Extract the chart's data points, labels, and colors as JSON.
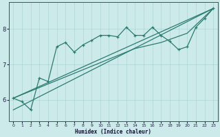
{
  "xlabel": "Humidex (Indice chaleur)",
  "xlim": [
    -0.5,
    23.5
  ],
  "ylim": [
    5.4,
    8.75
  ],
  "background_color": "#cdeaea",
  "grid_color": "#aed4d4",
  "line_color": "#2a7a70",
  "x_ticks": [
    0,
    1,
    2,
    3,
    4,
    5,
    6,
    7,
    8,
    9,
    10,
    11,
    12,
    13,
    14,
    15,
    16,
    17,
    18,
    19,
    20,
    21,
    22,
    23
  ],
  "y_ticks": [
    6,
    7,
    8
  ],
  "line_jagged": {
    "x": [
      0,
      1,
      2,
      3,
      4,
      5,
      6,
      7,
      8,
      9,
      10,
      11,
      12,
      13,
      14,
      15,
      16,
      17,
      18,
      19,
      20,
      21,
      22,
      23
    ],
    "y": [
      6.05,
      5.95,
      5.72,
      6.62,
      6.52,
      7.5,
      7.62,
      7.35,
      7.55,
      7.68,
      7.82,
      7.82,
      7.78,
      8.05,
      7.82,
      7.82,
      8.05,
      7.82,
      7.65,
      7.42,
      7.5,
      8.05,
      8.3,
      8.58
    ]
  },
  "line_upper": {
    "x": [
      0,
      23
    ],
    "y": [
      6.05,
      8.58
    ]
  },
  "line_mid": {
    "x": [
      0,
      14,
      17,
      20,
      23
    ],
    "y": [
      6.05,
      7.45,
      7.62,
      7.88,
      8.58
    ]
  },
  "line_lower": {
    "x": [
      0,
      23
    ],
    "y": [
      5.72,
      8.58
    ]
  }
}
